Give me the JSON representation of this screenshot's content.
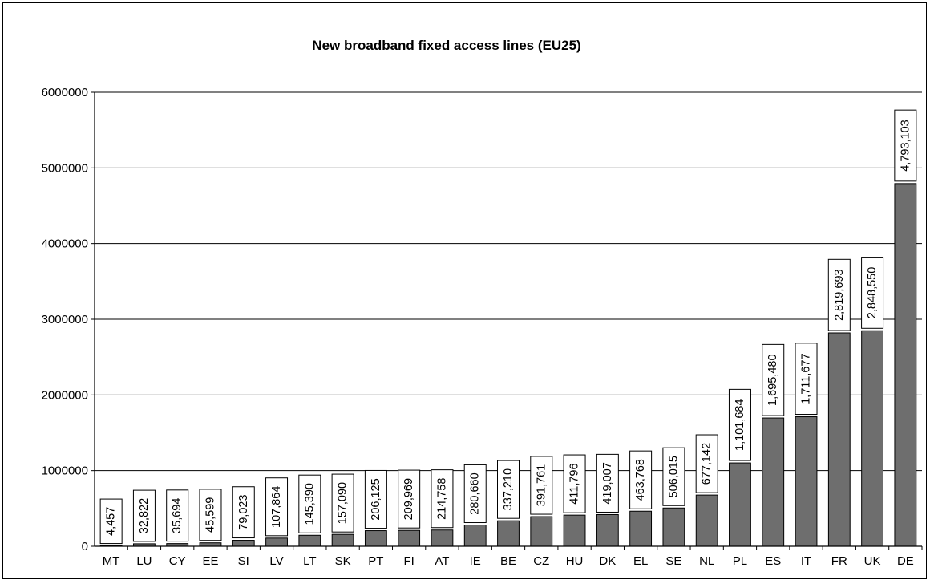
{
  "chart_data": {
    "type": "bar",
    "title": "New broadband fixed access lines (EU25)",
    "xlabel": "",
    "ylabel": "",
    "ylim": [
      0,
      6000000
    ],
    "yticks": [
      "0",
      "1000000",
      "2000000",
      "3000000",
      "4000000",
      "5000000",
      "6000000"
    ],
    "ytick_values": [
      0,
      1000000,
      2000000,
      3000000,
      4000000,
      5000000,
      6000000
    ],
    "grid": true,
    "legend": "none",
    "bar_color": "#6e6e6e",
    "categories": [
      "MT",
      "LU",
      "CY",
      "EE",
      "SI",
      "LV",
      "LT",
      "SK",
      "PT",
      "FI",
      "AT",
      "IE",
      "BE",
      "CZ",
      "HU",
      "DK",
      "EL",
      "SE",
      "NL",
      "PL",
      "ES",
      "IT",
      "FR",
      "UK",
      "DE"
    ],
    "values": [
      4457,
      32822,
      35694,
      45599,
      79023,
      107864,
      145390,
      157090,
      206125,
      209969,
      214758,
      280660,
      337210,
      391761,
      411796,
      419007,
      463768,
      506015,
      677142,
      1101684,
      1695480,
      1711677,
      2819693,
      2848550,
      4793103
    ],
    "data_labels": [
      "4,457",
      "32,822",
      "35,694",
      "45,599",
      "79,023",
      "107,864",
      "145,390",
      "157,090",
      "206,125",
      "209,969",
      "214,758",
      "280,660",
      "337,210",
      "391,761",
      "411,796",
      "419,007",
      "463,768",
      "506,015",
      "677,142",
      "1,101,684",
      "1,695,480",
      "1,711,677",
      "2,819,693",
      "2,848,550",
      "4,793,103"
    ]
  }
}
